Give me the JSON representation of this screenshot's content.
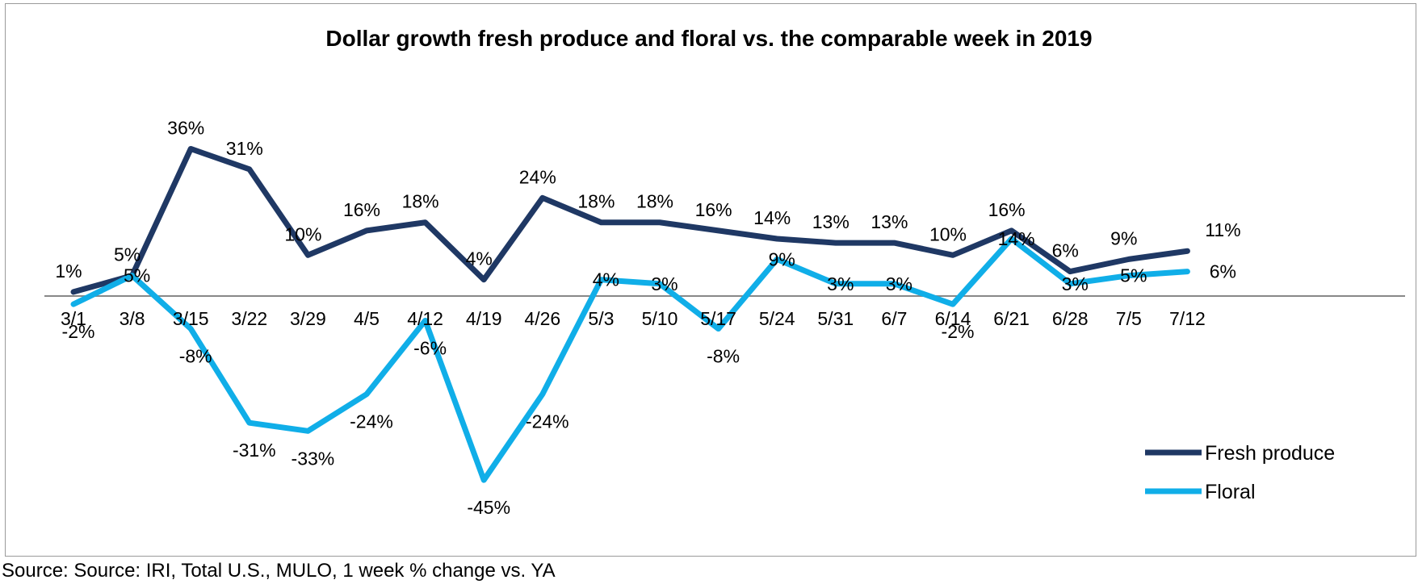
{
  "chart_data": {
    "type": "line",
    "title": "Dollar growth fresh produce and floral vs. the comparable week in 2019",
    "categories": [
      "3/1",
      "3/8",
      "3/15",
      "3/22",
      "3/29",
      "4/5",
      "4/12",
      "4/19",
      "4/26",
      "5/3",
      "5/10",
      "5/17",
      "5/24",
      "5/31",
      "6/7",
      "6/14",
      "6/21",
      "6/28",
      "7/5",
      "7/12"
    ],
    "series": [
      {
        "name": "Fresh produce",
        "color": "#1f3864",
        "values": [
          1,
          5,
          36,
          31,
          10,
          16,
          18,
          4,
          24,
          18,
          18,
          16,
          14,
          13,
          13,
          10,
          16,
          6,
          9,
          11
        ],
        "labels": [
          "1%",
          "5%",
          "36%",
          "31%",
          "10%",
          "16%",
          "18%",
          "4%",
          "24%",
          "18%",
          "18%",
          "16%",
          "14%",
          "13%",
          "13%",
          "10%",
          "16%",
          "6%",
          "9%",
          "11%"
        ]
      },
      {
        "name": "Floral",
        "color": "#10aee8",
        "values": [
          -2,
          5,
          -8,
          -31,
          -33,
          -24,
          -6,
          -45,
          -24,
          4,
          3,
          -8,
          9,
          3,
          3,
          -2,
          14,
          3,
          5,
          6
        ],
        "labels": [
          "-2%",
          "5%",
          "-8%",
          "-31%",
          "-33%",
          "-24%",
          "-6%",
          "-45%",
          "-24%",
          "4%",
          "3%",
          "-8%",
          "9%",
          "3%",
          "3%",
          "-2%",
          "14%",
          "3%",
          "5%",
          "6%"
        ]
      }
    ],
    "xlabel": "",
    "ylabel": "",
    "ylim": [
      -50,
      40
    ],
    "grid": false,
    "legend": "bottom-right"
  },
  "source": "Source: Source: IRI, Total U.S., MULO, 1 week % change vs. YA"
}
